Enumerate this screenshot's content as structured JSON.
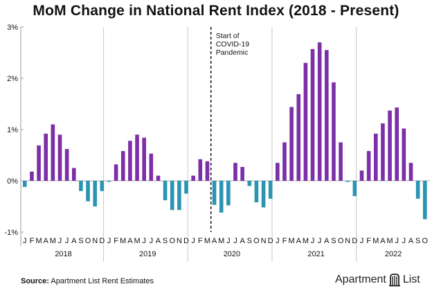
{
  "chart_data": {
    "type": "bar",
    "title": "MoM Change in National Rent Index (2018 - Present)",
    "ylim": [
      -1,
      3
    ],
    "yticks": [
      -1,
      0,
      1,
      2,
      3
    ],
    "ytick_labels": [
      "-1%",
      "0%",
      "1%",
      "2%",
      "3%"
    ],
    "xtick_labels": [
      "J",
      "F",
      "M",
      "A",
      "M",
      "J",
      "J",
      "A",
      "S",
      "O",
      "N",
      "D",
      "J",
      "F",
      "M",
      "A",
      "M",
      "J",
      "J",
      "A",
      "S",
      "O",
      "N",
      "D",
      "J",
      "F",
      "M",
      "A",
      "M",
      "J",
      "J",
      "A",
      "S",
      "O",
      "N",
      "D",
      "J",
      "F",
      "M",
      "A",
      "M",
      "J",
      "J",
      "A",
      "S",
      "O",
      "N",
      "D",
      "J",
      "F",
      "M",
      "A",
      "M",
      "J",
      "J",
      "A",
      "S",
      "O"
    ],
    "years": [
      {
        "label": "2018",
        "months": 12
      },
      {
        "label": "2019",
        "months": 12
      },
      {
        "label": "2020",
        "months": 12
      },
      {
        "label": "2021",
        "months": 12
      },
      {
        "label": "2022",
        "months": 10
      }
    ],
    "values": [
      -0.12,
      0.18,
      0.69,
      0.92,
      1.1,
      0.9,
      0.62,
      0.25,
      -0.2,
      -0.4,
      -0.5,
      -0.2,
      -0.02,
      0.32,
      0.58,
      0.78,
      0.9,
      0.84,
      0.53,
      0.1,
      -0.38,
      -0.57,
      -0.57,
      -0.25,
      0.1,
      0.42,
      0.38,
      -0.47,
      -0.62,
      -0.48,
      0.35,
      0.27,
      -0.1,
      -0.42,
      -0.52,
      -0.35,
      0.35,
      0.75,
      1.44,
      1.69,
      2.3,
      2.57,
      2.7,
      2.55,
      1.92,
      0.75,
      -0.02,
      -0.3,
      0.2,
      0.58,
      0.92,
      1.12,
      1.37,
      1.43,
      1.02,
      0.35,
      -0.35,
      -0.75
    ],
    "positive_color": "#7b2fa8",
    "negative_color": "#2a95b3",
    "annotation": {
      "text": [
        "Start of",
        "COVID-19",
        "Pandemic"
      ],
      "after_index": 26,
      "style": "dashed"
    },
    "grid": "vertical year separators"
  },
  "source": {
    "label": "Source:",
    "text": "Apartment List Rent Estimates"
  },
  "brand": {
    "name": "Apartment",
    "suffix": "List",
    "icon": "apartment-list-logo-icon"
  }
}
